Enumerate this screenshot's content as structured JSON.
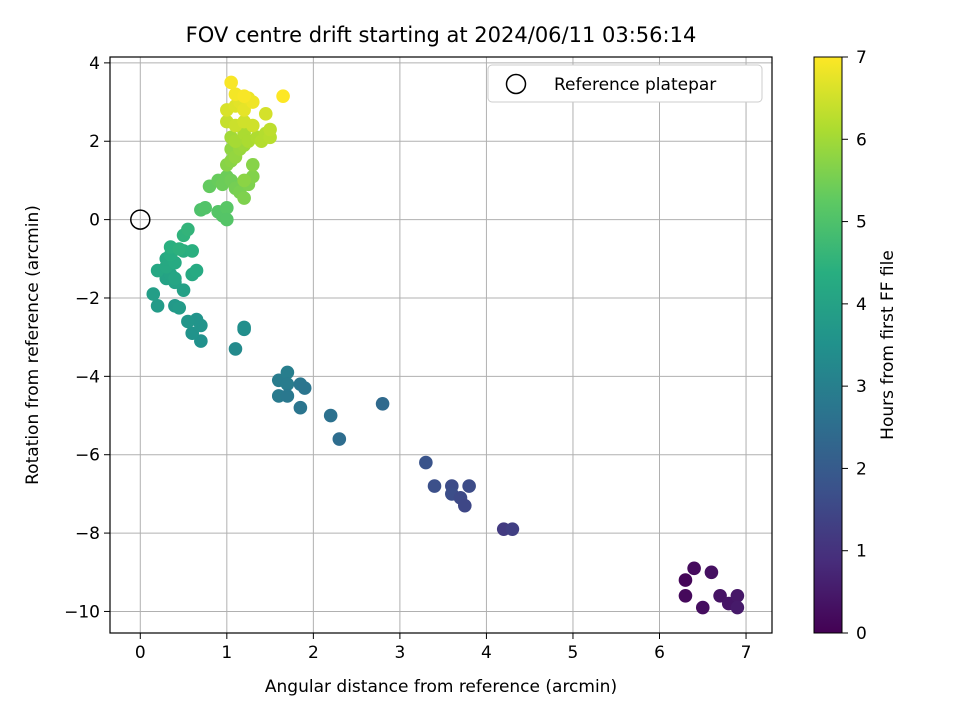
{
  "chart_data": {
    "type": "scatter",
    "title": "FOV centre drift starting at 2024/06/11 03:56:14",
    "xlabel": "Angular distance from reference (arcmin)",
    "ylabel": "Rotation from reference (arcmin)",
    "xlim": [
      -0.35,
      7.3
    ],
    "ylim": [
      -10.55,
      4.15
    ],
    "xticks": [
      0,
      1,
      2,
      3,
      4,
      5,
      6,
      7
    ],
    "yticks": [
      4,
      2,
      0,
      -2,
      -4,
      -6,
      -8,
      -10
    ],
    "xtick_labels": [
      "0",
      "1",
      "2",
      "3",
      "4",
      "5",
      "6",
      "7"
    ],
    "ytick_labels": [
      "4",
      "2",
      "0",
      "−2",
      "−4",
      "−6",
      "−8",
      "−10"
    ],
    "grid": true,
    "legend": {
      "position": "top-right",
      "entries": [
        "Reference platepar"
      ]
    },
    "reference_point": {
      "x": 0,
      "y": 0,
      "label": "Reference platepar"
    },
    "colorbar": {
      "label": "Hours from first FF file",
      "range": [
        0,
        7
      ],
      "ticks": [
        0,
        1,
        2,
        3,
        4,
        5,
        6,
        7
      ],
      "tick_labels": [
        "0",
        "1",
        "2",
        "3",
        "4",
        "5",
        "6",
        "7"
      ],
      "colormap": "viridis"
    },
    "points": [
      {
        "x": 6.3,
        "y": -9.2,
        "c": 0.1
      },
      {
        "x": 6.3,
        "y": -9.6,
        "c": 0.15
      },
      {
        "x": 6.4,
        "y": -8.9,
        "c": 0.2
      },
      {
        "x": 6.5,
        "y": -9.9,
        "c": 0.25
      },
      {
        "x": 6.6,
        "y": -9.0,
        "c": 0.3
      },
      {
        "x": 6.7,
        "y": -9.6,
        "c": 0.35
      },
      {
        "x": 6.8,
        "y": -9.8,
        "c": 0.4
      },
      {
        "x": 6.9,
        "y": -9.6,
        "c": 0.45
      },
      {
        "x": 6.9,
        "y": -9.9,
        "c": 0.5
      },
      {
        "x": 4.2,
        "y": -7.9,
        "c": 1.2
      },
      {
        "x": 4.3,
        "y": -7.9,
        "c": 1.3
      },
      {
        "x": 3.3,
        "y": -6.2,
        "c": 1.8
      },
      {
        "x": 3.4,
        "y": -6.8,
        "c": 1.7
      },
      {
        "x": 3.6,
        "y": -6.8,
        "c": 1.6
      },
      {
        "x": 3.6,
        "y": -7.0,
        "c": 1.65
      },
      {
        "x": 3.7,
        "y": -7.1,
        "c": 1.55
      },
      {
        "x": 3.75,
        "y": -7.3,
        "c": 1.5
      },
      {
        "x": 3.8,
        "y": -6.8,
        "c": 1.6
      },
      {
        "x": 2.8,
        "y": -4.7,
        "c": 2.4
      },
      {
        "x": 2.2,
        "y": -5.0,
        "c": 2.6
      },
      {
        "x": 2.3,
        "y": -5.6,
        "c": 2.5
      },
      {
        "x": 1.6,
        "y": -4.1,
        "c": 2.9
      },
      {
        "x": 1.6,
        "y": -4.5,
        "c": 2.85
      },
      {
        "x": 1.7,
        "y": -3.9,
        "c": 2.95
      },
      {
        "x": 1.7,
        "y": -4.2,
        "c": 2.9
      },
      {
        "x": 1.7,
        "y": -4.5,
        "c": 2.8
      },
      {
        "x": 1.85,
        "y": -4.2,
        "c": 2.75
      },
      {
        "x": 1.9,
        "y": -4.3,
        "c": 2.7
      },
      {
        "x": 1.85,
        "y": -4.8,
        "c": 2.7
      },
      {
        "x": 1.1,
        "y": -3.3,
        "c": 3.3
      },
      {
        "x": 1.2,
        "y": -2.8,
        "c": 3.4
      },
      {
        "x": 1.2,
        "y": -2.75,
        "c": 3.45
      },
      {
        "x": 0.7,
        "y": -3.1,
        "c": 3.5
      },
      {
        "x": 0.6,
        "y": -2.9,
        "c": 3.55
      },
      {
        "x": 0.7,
        "y": -2.7,
        "c": 3.6
      },
      {
        "x": 0.65,
        "y": -2.55,
        "c": 3.6
      },
      {
        "x": 0.55,
        "y": -2.6,
        "c": 3.65
      },
      {
        "x": 0.2,
        "y": -2.2,
        "c": 3.8
      },
      {
        "x": 0.4,
        "y": -2.2,
        "c": 3.75
      },
      {
        "x": 0.45,
        "y": -2.25,
        "c": 3.8
      },
      {
        "x": 0.15,
        "y": -1.9,
        "c": 3.9
      },
      {
        "x": 0.5,
        "y": -1.8,
        "c": 3.95
      },
      {
        "x": 0.3,
        "y": -1.5,
        "c": 4.0
      },
      {
        "x": 0.35,
        "y": -1.4,
        "c": 4.05
      },
      {
        "x": 0.4,
        "y": -1.6,
        "c": 4.0
      },
      {
        "x": 0.4,
        "y": -1.5,
        "c": 4.1
      },
      {
        "x": 0.2,
        "y": -1.3,
        "c": 4.15
      },
      {
        "x": 0.3,
        "y": -1.2,
        "c": 4.2
      },
      {
        "x": 0.3,
        "y": -1.0,
        "c": 4.2
      },
      {
        "x": 0.4,
        "y": -1.1,
        "c": 4.25
      },
      {
        "x": 0.35,
        "y": -0.9,
        "c": 4.3
      },
      {
        "x": 0.6,
        "y": -1.4,
        "c": 4.2
      },
      {
        "x": 0.65,
        "y": -1.3,
        "c": 4.25
      },
      {
        "x": 0.5,
        "y": -0.8,
        "c": 4.35
      },
      {
        "x": 0.6,
        "y": -0.8,
        "c": 4.4
      },
      {
        "x": 0.35,
        "y": -0.7,
        "c": 4.4
      },
      {
        "x": 0.45,
        "y": -0.75,
        "c": 4.45
      },
      {
        "x": 0.5,
        "y": -0.4,
        "c": 4.5
      },
      {
        "x": 0.55,
        "y": -0.25,
        "c": 4.55
      },
      {
        "x": 0.7,
        "y": 0.25,
        "c": 5.0
      },
      {
        "x": 0.75,
        "y": 0.3,
        "c": 5.05
      },
      {
        "x": 0.9,
        "y": 0.2,
        "c": 5.1
      },
      {
        "x": 0.95,
        "y": 0.1,
        "c": 5.1
      },
      {
        "x": 1.0,
        "y": 0.3,
        "c": 5.15
      },
      {
        "x": 1.0,
        "y": 0.0,
        "c": 5.1
      },
      {
        "x": 0.8,
        "y": 0.85,
        "c": 5.3
      },
      {
        "x": 0.9,
        "y": 1.0,
        "c": 5.35
      },
      {
        "x": 0.95,
        "y": 0.9,
        "c": 5.4
      },
      {
        "x": 1.0,
        "y": 1.1,
        "c": 5.4
      },
      {
        "x": 1.05,
        "y": 1.0,
        "c": 5.45
      },
      {
        "x": 1.1,
        "y": 0.8,
        "c": 5.5
      },
      {
        "x": 1.15,
        "y": 0.7,
        "c": 5.55
      },
      {
        "x": 1.2,
        "y": 0.55,
        "c": 5.6
      },
      {
        "x": 1.25,
        "y": 0.9,
        "c": 5.6
      },
      {
        "x": 1.3,
        "y": 1.1,
        "c": 5.65
      },
      {
        "x": 1.3,
        "y": 1.4,
        "c": 5.7
      },
      {
        "x": 1.2,
        "y": 1.0,
        "c": 5.75
      },
      {
        "x": 1.0,
        "y": 1.4,
        "c": 5.7
      },
      {
        "x": 1.05,
        "y": 1.5,
        "c": 5.75
      },
      {
        "x": 1.05,
        "y": 1.8,
        "c": 5.8
      },
      {
        "x": 1.1,
        "y": 1.6,
        "c": 5.85
      },
      {
        "x": 1.15,
        "y": 1.8,
        "c": 5.9
      },
      {
        "x": 1.2,
        "y": 1.9,
        "c": 5.95
      },
      {
        "x": 1.05,
        "y": 2.1,
        "c": 6.0
      },
      {
        "x": 1.1,
        "y": 2.0,
        "c": 6.05
      },
      {
        "x": 1.2,
        "y": 2.2,
        "c": 6.1
      },
      {
        "x": 1.25,
        "y": 2.0,
        "c": 6.1
      },
      {
        "x": 1.35,
        "y": 2.1,
        "c": 6.15
      },
      {
        "x": 1.4,
        "y": 2.0,
        "c": 6.2
      },
      {
        "x": 1.45,
        "y": 2.2,
        "c": 6.2
      },
      {
        "x": 1.5,
        "y": 2.1,
        "c": 6.25
      },
      {
        "x": 1.5,
        "y": 2.3,
        "c": 6.3
      },
      {
        "x": 1.0,
        "y": 2.5,
        "c": 6.4
      },
      {
        "x": 1.1,
        "y": 2.4,
        "c": 6.45
      },
      {
        "x": 1.2,
        "y": 2.5,
        "c": 6.5
      },
      {
        "x": 1.3,
        "y": 2.4,
        "c": 6.5
      },
      {
        "x": 1.45,
        "y": 2.7,
        "c": 6.55
      },
      {
        "x": 1.0,
        "y": 2.8,
        "c": 6.6
      },
      {
        "x": 1.1,
        "y": 2.9,
        "c": 6.65
      },
      {
        "x": 1.15,
        "y": 3.0,
        "c": 6.7
      },
      {
        "x": 1.2,
        "y": 2.8,
        "c": 6.75
      },
      {
        "x": 1.25,
        "y": 3.1,
        "c": 6.8
      },
      {
        "x": 1.3,
        "y": 3.0,
        "c": 6.85
      },
      {
        "x": 1.1,
        "y": 3.2,
        "c": 6.9
      },
      {
        "x": 1.2,
        "y": 3.15,
        "c": 6.95
      },
      {
        "x": 1.05,
        "y": 3.5,
        "c": 6.95
      },
      {
        "x": 1.65,
        "y": 3.15,
        "c": 7.0
      }
    ]
  }
}
